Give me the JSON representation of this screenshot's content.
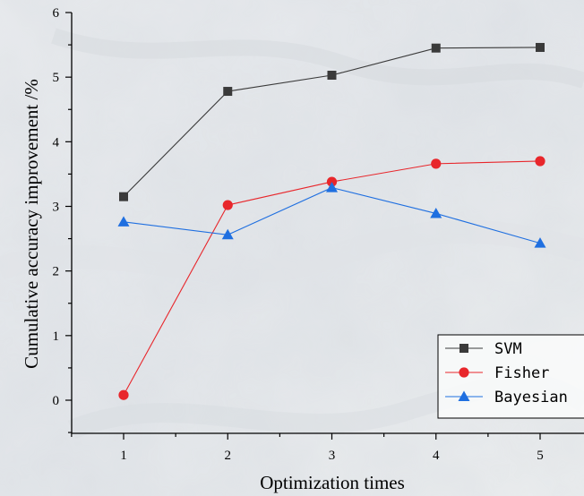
{
  "chart_data": {
    "type": "line",
    "xlabel": "Optimization times",
    "ylabel": "Cumulative accuracy improvement /%",
    "x": [
      1,
      2,
      3,
      4,
      5
    ],
    "xticks": [
      "1",
      "2",
      "3",
      "4",
      "5"
    ],
    "xlim": [
      0.5,
      5.5
    ],
    "ylim": [
      -0.5,
      6
    ],
    "yticks": [
      "0",
      "1",
      "2",
      "3",
      "4",
      "5",
      "6"
    ],
    "grid": false,
    "legend_position": "bottom-right",
    "series": [
      {
        "name": "SVM",
        "values": [
          3.15,
          4.78,
          5.03,
          5.45,
          5.46
        ],
        "color": "#3a3a3a",
        "marker": "square"
      },
      {
        "name": "Fisher",
        "values": [
          0.08,
          3.02,
          3.38,
          3.66,
          3.7
        ],
        "color": "#e8262b",
        "marker": "circle"
      },
      {
        "name": "Bayesian",
        "values": [
          2.76,
          2.56,
          3.29,
          2.89,
          2.43
        ],
        "color": "#1f6fe0",
        "marker": "triangle"
      }
    ]
  }
}
